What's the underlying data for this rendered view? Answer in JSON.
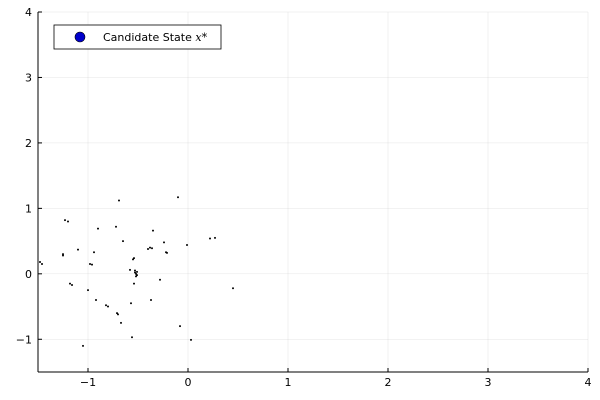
{
  "chart_data": {
    "type": "scatter",
    "title": "",
    "xlabel": "",
    "ylabel": "",
    "xlim": [
      -1.5,
      4
    ],
    "ylim": [
      -1.5,
      4
    ],
    "x_ticks": [
      -1,
      0,
      1,
      2,
      3,
      4
    ],
    "x_tick_labels": [
      "−1",
      "0",
      "1",
      "2",
      "3",
      "4"
    ],
    "y_ticks": [
      -1,
      0,
      1,
      2,
      3,
      4
    ],
    "y_tick_labels": [
      "−1",
      "0",
      "1",
      "2",
      "3",
      "4"
    ],
    "grid": true,
    "legend": {
      "placement": "top-left",
      "entries": [
        {
          "label": "Candidate State ",
          "math": "x*",
          "marker_color": "#0000cc"
        }
      ]
    },
    "series": [
      {
        "name": "Candidate State x*",
        "color": "#000000",
        "points": [
          [
            -1.48,
            0.18
          ],
          [
            -1.46,
            0.15
          ],
          [
            -1.25,
            0.28
          ],
          [
            -1.25,
            0.3
          ],
          [
            -1.23,
            0.82
          ],
          [
            -1.2,
            0.8
          ],
          [
            -1.18,
            -0.15
          ],
          [
            -1.16,
            -0.17
          ],
          [
            -1.1,
            0.37
          ],
          [
            -1.05,
            -1.1
          ],
          [
            -1.0,
            -0.25
          ],
          [
            -0.98,
            0.15
          ],
          [
            -0.96,
            0.14
          ],
          [
            -0.94,
            0.33
          ],
          [
            -0.92,
            -0.4
          ],
          [
            -0.9,
            0.69
          ],
          [
            -0.82,
            -0.48
          ],
          [
            -0.8,
            -0.5
          ],
          [
            -0.71,
            -0.6
          ],
          [
            -0.7,
            -0.62
          ],
          [
            -0.72,
            0.72
          ],
          [
            -0.69,
            1.12
          ],
          [
            -0.67,
            -0.75
          ],
          [
            -0.65,
            0.5
          ],
          [
            -0.58,
            0.06
          ],
          [
            -0.57,
            -0.45
          ],
          [
            -0.56,
            -0.97
          ],
          [
            -0.55,
            0.22
          ],
          [
            -0.54,
            0.24
          ],
          [
            -0.54,
            -0.15
          ],
          [
            -0.53,
            0.02
          ],
          [
            -0.52,
            0.0
          ],
          [
            -0.51,
            -0.02
          ],
          [
            -0.52,
            -0.04
          ],
          [
            -0.53,
            0.05
          ],
          [
            -0.51,
            0.03
          ],
          [
            -0.4,
            0.38
          ],
          [
            -0.38,
            0.4
          ],
          [
            -0.36,
            0.39
          ],
          [
            -0.37,
            -0.4
          ],
          [
            -0.35,
            0.66
          ],
          [
            -0.28,
            -0.09
          ],
          [
            -0.24,
            0.48
          ],
          [
            -0.22,
            0.33
          ],
          [
            -0.21,
            0.32
          ],
          [
            -0.1,
            1.17
          ],
          [
            -0.08,
            -0.8
          ],
          [
            -0.01,
            0.44
          ],
          [
            0.03,
            -1.01
          ],
          [
            0.22,
            0.54
          ],
          [
            0.27,
            0.55
          ],
          [
            0.45,
            -0.22
          ]
        ]
      }
    ]
  }
}
